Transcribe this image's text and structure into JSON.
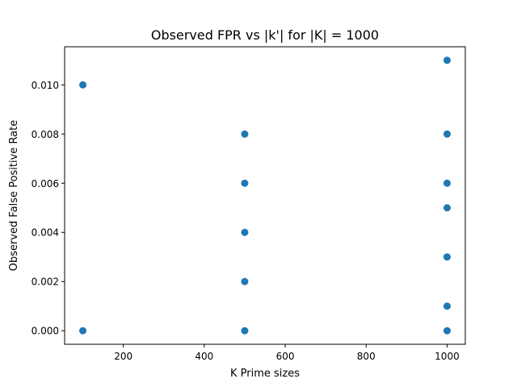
{
  "chart_data": {
    "type": "scatter",
    "title": "Observed FPR vs |k'| for |K| = 1000",
    "xlabel": "K Prime sizes",
    "ylabel": "Observed False Positive Rate",
    "xlim": [
      55,
      1045
    ],
    "ylim": [
      -0.00055,
      0.01155
    ],
    "x_ticks": [
      200,
      400,
      600,
      800,
      1000
    ],
    "x_tick_labels": [
      "200",
      "400",
      "600",
      "800",
      "1000"
    ],
    "y_ticks": [
      0.0,
      0.002,
      0.004,
      0.006,
      0.008,
      0.01
    ],
    "y_tick_labels": [
      "0.000",
      "0.002",
      "0.004",
      "0.006",
      "0.008",
      "0.010"
    ],
    "grid": false,
    "marker_color": "#1f77b4",
    "points": [
      {
        "x": 100,
        "y": 0.01
      },
      {
        "x": 100,
        "y": 0.0
      },
      {
        "x": 500,
        "y": 0.008
      },
      {
        "x": 500,
        "y": 0.006
      },
      {
        "x": 500,
        "y": 0.004
      },
      {
        "x": 500,
        "y": 0.002
      },
      {
        "x": 500,
        "y": 0.0
      },
      {
        "x": 1000,
        "y": 0.011
      },
      {
        "x": 1000,
        "y": 0.008
      },
      {
        "x": 1000,
        "y": 0.006
      },
      {
        "x": 1000,
        "y": 0.005
      },
      {
        "x": 1000,
        "y": 0.003
      },
      {
        "x": 1000,
        "y": 0.001
      },
      {
        "x": 1000,
        "y": 0.0
      }
    ]
  }
}
